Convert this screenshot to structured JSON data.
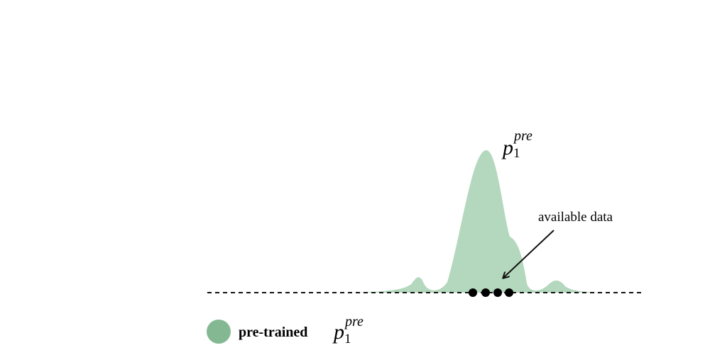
{
  "density_label": {
    "symbol": "p",
    "subscript": "1",
    "superscript": "pre"
  },
  "annotation": "available data",
  "legend": {
    "label": "pre-trained",
    "symbol": "p",
    "subscript": "1",
    "superscript": "pre"
  }
}
